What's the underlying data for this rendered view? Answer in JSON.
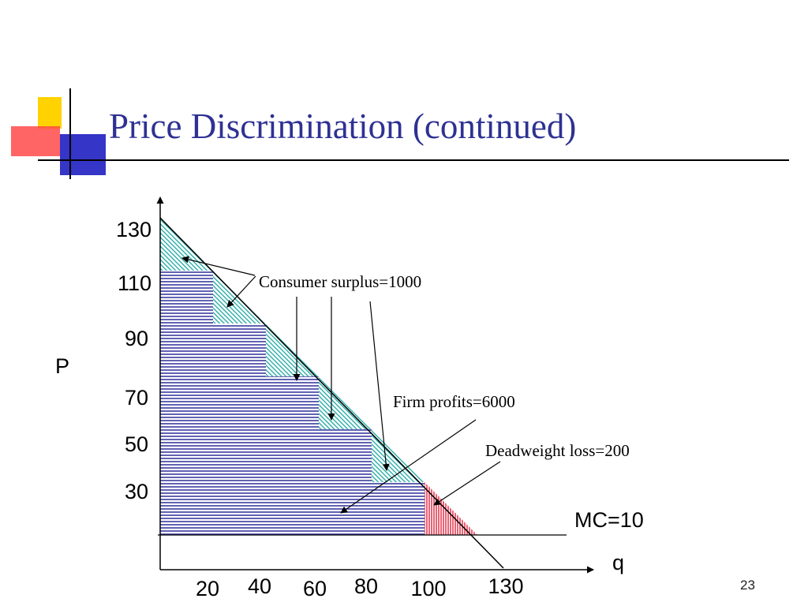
{
  "slide": {
    "title": "Price Discrimination (continued)",
    "page_number": "23",
    "colors": {
      "title": "#2e3192",
      "profit_fill": "#3a3aa0",
      "surplus_fill": "#1aa6a0",
      "deadweight_fill": "#e0203a"
    }
  },
  "diagram": {
    "y_axis_label": "P",
    "x_axis_label": "q",
    "y_ticks": [
      "130",
      "110",
      "90",
      "70",
      "50",
      "30"
    ],
    "x_ticks": [
      "20",
      "40",
      "60",
      "80",
      "100",
      "130"
    ],
    "mc_label": "MC=10",
    "labels": {
      "consumer_surplus": "Consumer surplus=1000",
      "firm_profits": "Firm profits=6000",
      "deadweight_loss": "Deadweight loss=200"
    },
    "steps": [
      {
        "q_start": 0,
        "q_end": 20,
        "price": 110
      },
      {
        "q_start": 20,
        "q_end": 40,
        "price": 90
      },
      {
        "q_start": 40,
        "q_end": 60,
        "price": 70
      },
      {
        "q_start": 60,
        "q_end": 80,
        "price": 50
      },
      {
        "q_start": 80,
        "q_end": 100,
        "price": 30
      }
    ],
    "mc_price": 10,
    "demand_intercept_price": 130,
    "demand_intercept_quantity": 130
  }
}
